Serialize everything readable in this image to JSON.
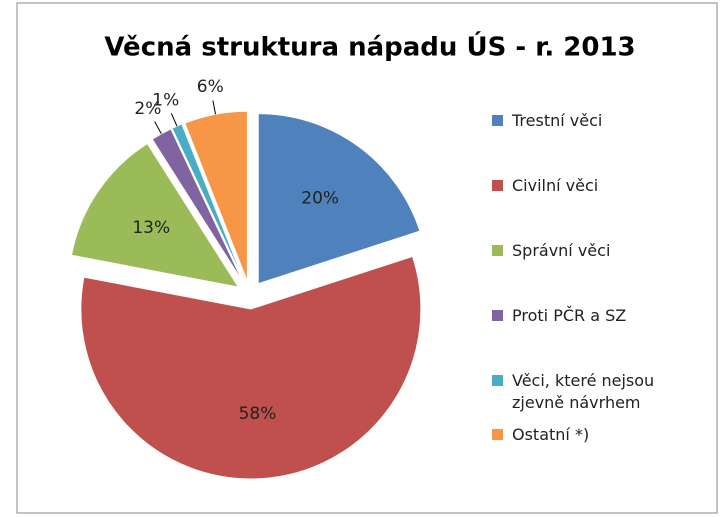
{
  "chart_data": {
    "type": "pie",
    "title": "Věcná struktura nápadu ÚS - r. 2013",
    "categories": [
      "Trestní věci",
      "Civilní věci",
      "Správní věci",
      "Proti PČR a SZ",
      "Věci, které nejsou zjevně návrhem",
      "Ostatní *)"
    ],
    "values": [
      20,
      58,
      13,
      2,
      1,
      6
    ],
    "value_labels": [
      "20%",
      "58%",
      "13%",
      "2%",
      "1%",
      "6%"
    ],
    "colors": [
      "#4f81bd",
      "#c0504d",
      "#9bbb59",
      "#8064a2",
      "#4bacc6",
      "#f79646"
    ],
    "legend": "right"
  }
}
